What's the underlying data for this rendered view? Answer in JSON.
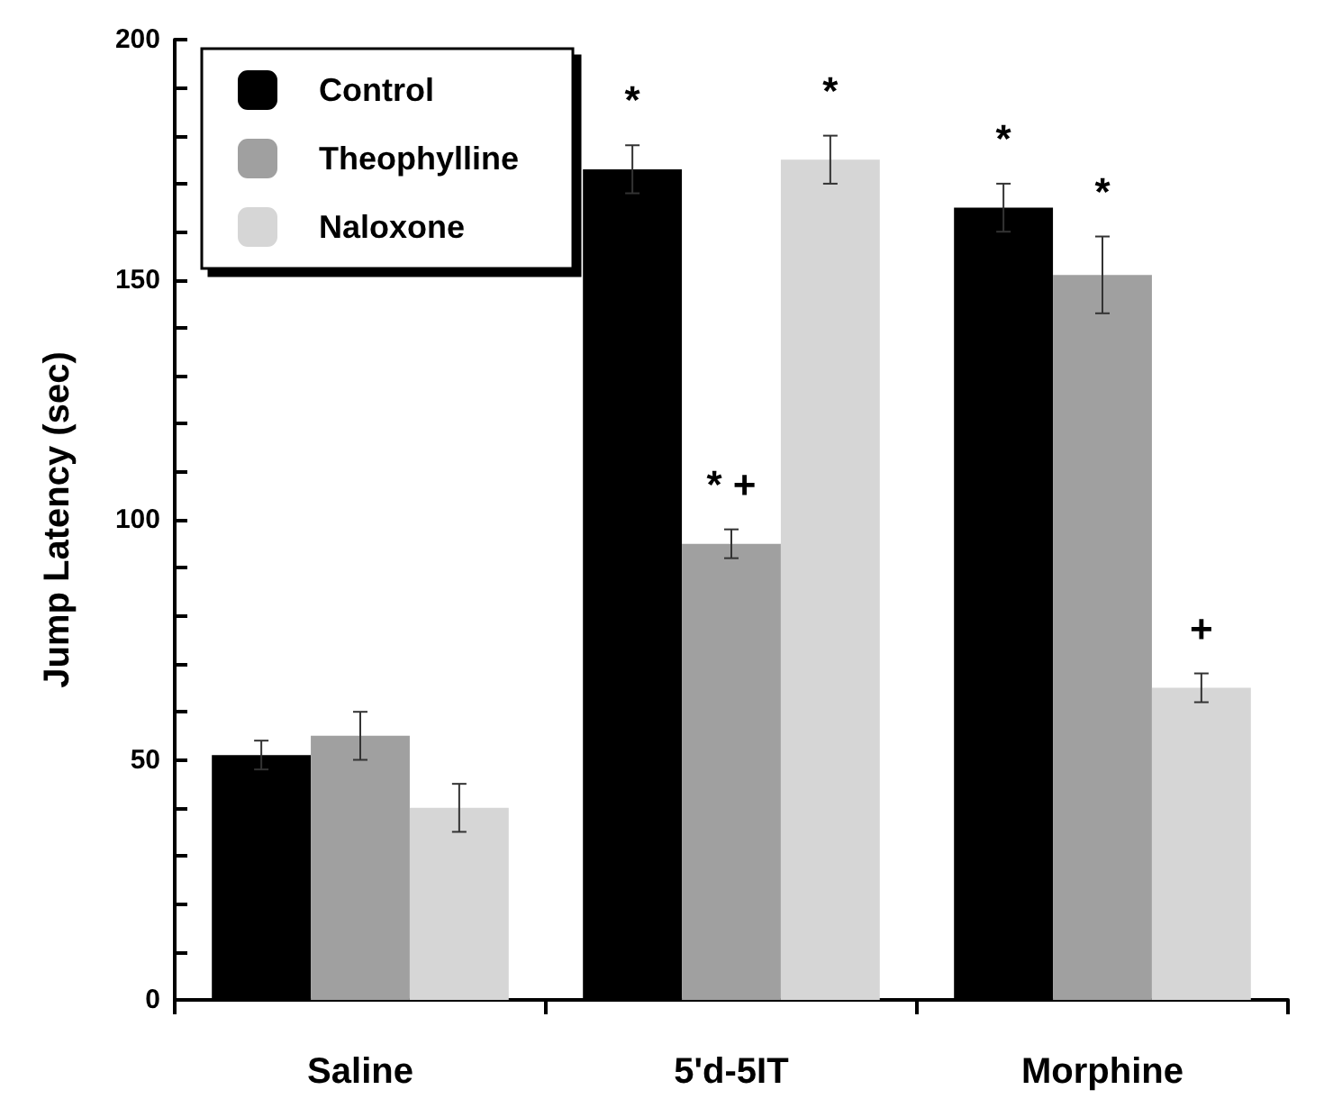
{
  "chart_data": {
    "type": "bar",
    "ylabel": "Jump Latency (sec)",
    "categories": [
      "Saline",
      "5'd-5IT",
      "Morphine"
    ],
    "series": [
      {
        "name": "Control",
        "color": "#000000",
        "values": [
          51,
          173,
          165
        ],
        "errors": [
          3,
          5,
          5
        ],
        "value_labels": [
          null,
          "*",
          "*"
        ]
      },
      {
        "name": "Theophylline",
        "color": "#a0a0a0",
        "values": [
          55,
          95,
          151
        ],
        "errors": [
          5,
          3,
          8
        ],
        "value_labels": [
          null,
          "* +",
          "*"
        ]
      },
      {
        "name": "Naloxone",
        "color": "#d6d6d6",
        "values": [
          40,
          175,
          65
        ],
        "errors": [
          5,
          5,
          3
        ],
        "value_labels": [
          null,
          "*",
          "+"
        ]
      }
    ],
    "ylim": [
      0,
      200
    ],
    "yticks": [
      0,
      {
        "value": 10,
        "label": null
      },
      {
        "value": 20,
        "label": null
      },
      {
        "value": 30,
        "label": null
      },
      {
        "value": 40,
        "label": null
      },
      50,
      {
        "value": 60,
        "label": null
      },
      {
        "value": 70,
        "label": null
      },
      {
        "value": 80,
        "label": null
      },
      {
        "value": 90,
        "label": null
      },
      100,
      {
        "value": 110,
        "label": null
      },
      {
        "value": 120,
        "label": null
      },
      {
        "value": 130,
        "label": null
      },
      {
        "value": 140,
        "label": null
      },
      150,
      {
        "value": 160,
        "label": null
      },
      {
        "value": 170,
        "label": null
      },
      {
        "value": 180,
        "label": null
      },
      {
        "value": 190,
        "label": null
      },
      200
    ],
    "grid": false,
    "legend": "top left"
  }
}
